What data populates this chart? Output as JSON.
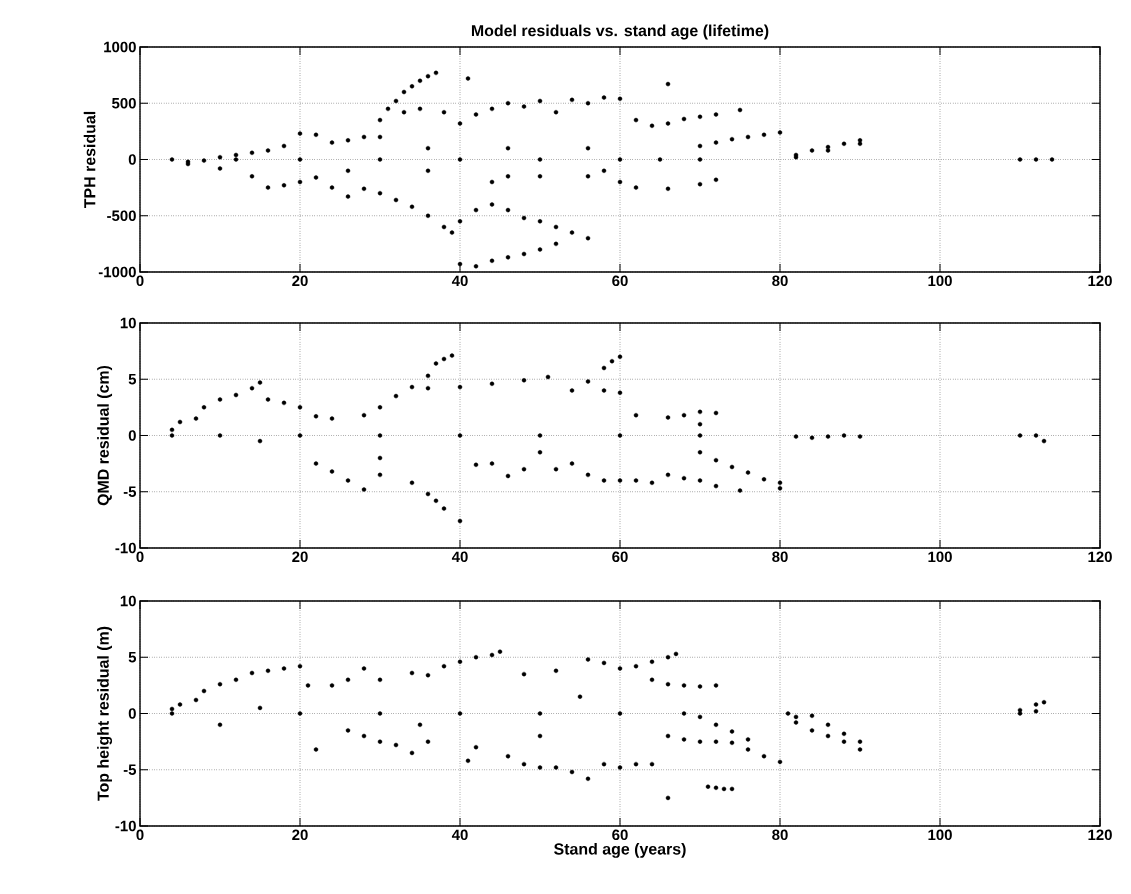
{
  "chart_data": [
    {
      "type": "scatter",
      "title": "Model residuals vs. stand age (lifetime)",
      "ylabel": "TPH residual",
      "color": "#000000",
      "grid": true,
      "xlim": [
        0,
        120
      ],
      "xticks": [
        0,
        20,
        40,
        60,
        80,
        100,
        120
      ],
      "ylim": [
        -1000,
        1000
      ],
      "yticks": [
        -1000,
        -500,
        0,
        500,
        1000
      ],
      "x": [
        4,
        6,
        8,
        10,
        12,
        14,
        16,
        18,
        20,
        22,
        24,
        26,
        28,
        30,
        30,
        31,
        32,
        33,
        34,
        35,
        36,
        37,
        41,
        66,
        33,
        35,
        38,
        40,
        42,
        44,
        46,
        48,
        50,
        52,
        54,
        56,
        58,
        60,
        62,
        64,
        66,
        68,
        70,
        72,
        75,
        70,
        72,
        74,
        76,
        78,
        80,
        82,
        84,
        86,
        88,
        90,
        82,
        86,
        90,
        110,
        112,
        114,
        6,
        10,
        14,
        16,
        18,
        20,
        22,
        24,
        26,
        28,
        30,
        32,
        34,
        36,
        38,
        39,
        40,
        42,
        44,
        46,
        48,
        50,
        52,
        54,
        56,
        40,
        42,
        44,
        46,
        48,
        50,
        52,
        60,
        62,
        66,
        70,
        72,
        44,
        50,
        56,
        12,
        20,
        30,
        40,
        50,
        60,
        65,
        70,
        36,
        46,
        56,
        26,
        36,
        46,
        58
      ],
      "values": [
        0,
        -20,
        -10,
        20,
        40,
        60,
        80,
        120,
        230,
        220,
        150,
        170,
        200,
        200,
        350,
        450,
        520,
        600,
        650,
        700,
        740,
        770,
        720,
        670,
        420,
        450,
        420,
        320,
        400,
        450,
        500,
        470,
        520,
        420,
        530,
        500,
        550,
        540,
        350,
        300,
        320,
        360,
        380,
        400,
        440,
        120,
        150,
        180,
        200,
        220,
        240,
        40,
        80,
        110,
        140,
        170,
        20,
        80,
        140,
        0,
        0,
        0,
        -40,
        -80,
        -150,
        -250,
        -230,
        -200,
        -160,
        -250,
        -330,
        -260,
        -300,
        -360,
        -420,
        -500,
        -600,
        -650,
        -550,
        -450,
        -400,
        -450,
        -520,
        -550,
        -600,
        -650,
        -700,
        -930,
        -950,
        -900,
        -870,
        -840,
        -800,
        -750,
        -200,
        -250,
        -260,
        -220,
        -180,
        -200,
        -150,
        -150,
        0,
        0,
        0,
        0,
        0,
        0,
        0,
        0,
        100,
        100,
        100,
        -100,
        -100,
        -150,
        -100
      ]
    },
    {
      "type": "scatter",
      "ylabel": "QMD residual (cm)",
      "color": "#000000",
      "grid": true,
      "xlim": [
        0,
        120
      ],
      "xticks": [
        0,
        20,
        40,
        60,
        80,
        100,
        120
      ],
      "ylim": [
        -10,
        10
      ],
      "yticks": [
        -10,
        -5,
        0,
        5,
        10
      ],
      "x": [
        4,
        4,
        5,
        7,
        8,
        10,
        12,
        14,
        15,
        16,
        18,
        20,
        22,
        24,
        28,
        30,
        32,
        34,
        36,
        37,
        38,
        39,
        36,
        40,
        44,
        48,
        51,
        54,
        56,
        58,
        59,
        60,
        58,
        60,
        62,
        66,
        68,
        70,
        72,
        70,
        22,
        24,
        26,
        28,
        30,
        34,
        36,
        37,
        38,
        40,
        42,
        44,
        46,
        48,
        52,
        56,
        58,
        60,
        62,
        64,
        66,
        68,
        70,
        72,
        75,
        70,
        72,
        74,
        76,
        78,
        80,
        80,
        82,
        84,
        86,
        88,
        90,
        110,
        112,
        113,
        10,
        20,
        30,
        40,
        50,
        60,
        70,
        15,
        30,
        50,
        54
      ],
      "values": [
        0,
        0.5,
        1.2,
        1.5,
        2.5,
        3.2,
        3.6,
        4.2,
        4.7,
        3.2,
        2.9,
        2.5,
        1.7,
        1.5,
        1.8,
        2.5,
        3.5,
        4.3,
        5.3,
        6.4,
        6.8,
        7.1,
        4.2,
        4.3,
        4.6,
        4.9,
        5.2,
        4.0,
        4.8,
        6.0,
        6.6,
        7.0,
        4.0,
        3.8,
        1.8,
        1.6,
        1.8,
        2.1,
        2.0,
        1.0,
        -2.5,
        -3.2,
        -4.0,
        -4.8,
        -3.5,
        -4.2,
        -5.2,
        -5.8,
        -6.5,
        -7.6,
        -2.6,
        -2.5,
        -3.6,
        -3.0,
        -3.0,
        -3.5,
        -4.0,
        -4.0,
        -4.0,
        -4.2,
        -3.5,
        -3.8,
        -4.0,
        -4.5,
        -4.9,
        -1.5,
        -2.2,
        -2.8,
        -3.3,
        -3.9,
        -4.7,
        -4.2,
        -0.1,
        -0.2,
        -0.1,
        0,
        -0.1,
        0,
        0,
        -0.5,
        0,
        0,
        0,
        0,
        0,
        0,
        0,
        -0.5,
        -2.0,
        -1.5,
        -2.5
      ]
    },
    {
      "type": "scatter",
      "xlabel": "Stand age (years)",
      "ylabel": "Top height residual (m)",
      "color": "#000000",
      "grid": true,
      "xlim": [
        0,
        120
      ],
      "xticks": [
        0,
        20,
        40,
        60,
        80,
        100,
        120
      ],
      "ylim": [
        -10,
        10
      ],
      "yticks": [
        -10,
        -5,
        0,
        5,
        10
      ],
      "x": [
        4,
        4,
        5,
        7,
        8,
        10,
        12,
        14,
        16,
        18,
        20,
        21,
        24,
        26,
        28,
        30,
        34,
        36,
        38,
        40,
        42,
        44,
        45,
        48,
        52,
        56,
        58,
        60,
        62,
        64,
        66,
        67,
        64,
        66,
        68,
        70,
        72,
        10,
        22,
        26,
        28,
        30,
        32,
        34,
        36,
        41,
        42,
        46,
        48,
        50,
        52,
        54,
        56,
        58,
        60,
        62,
        64,
        66,
        71,
        72,
        73,
        74,
        66,
        68,
        70,
        72,
        74,
        76,
        78,
        80,
        72,
        74,
        76,
        68,
        70,
        81,
        82,
        84,
        86,
        88,
        90,
        82,
        84,
        86,
        88,
        90,
        110,
        110,
        112,
        113,
        112,
        20,
        30,
        40,
        50,
        60,
        15,
        35,
        50,
        55
      ],
      "values": [
        0,
        0.4,
        0.8,
        1.2,
        2.0,
        2.6,
        3.0,
        3.6,
        3.8,
        4.0,
        4.2,
        2.5,
        2.5,
        3.0,
        4.0,
        3.0,
        3.6,
        3.4,
        4.2,
        4.6,
        5.0,
        5.2,
        5.5,
        3.5,
        3.8,
        4.8,
        4.5,
        4.0,
        4.2,
        4.6,
        5.0,
        5.3,
        3.0,
        2.6,
        2.5,
        2.4,
        2.5,
        -1.0,
        -3.2,
        -1.5,
        -2.0,
        -2.5,
        -2.8,
        -3.5,
        -2.5,
        -4.2,
        -3.0,
        -3.8,
        -4.5,
        -4.8,
        -4.8,
        -5.2,
        -5.8,
        -4.5,
        -4.8,
        -4.5,
        -4.5,
        -7.5,
        -6.5,
        -6.6,
        -6.7,
        -6.7,
        -2.0,
        -2.3,
        -2.5,
        -2.5,
        -2.6,
        -3.2,
        -3.8,
        -4.3,
        -1.0,
        -1.6,
        -2.3,
        0,
        -0.3,
        0,
        -0.3,
        -0.2,
        -1.0,
        -1.8,
        -2.5,
        -0.8,
        -1.5,
        -2.0,
        -2.5,
        -3.2,
        0,
        0.3,
        0.8,
        1.0,
        0.2,
        0,
        0,
        0,
        0,
        0,
        0.5,
        -1.0,
        -2.0,
        1.5
      ]
    }
  ]
}
